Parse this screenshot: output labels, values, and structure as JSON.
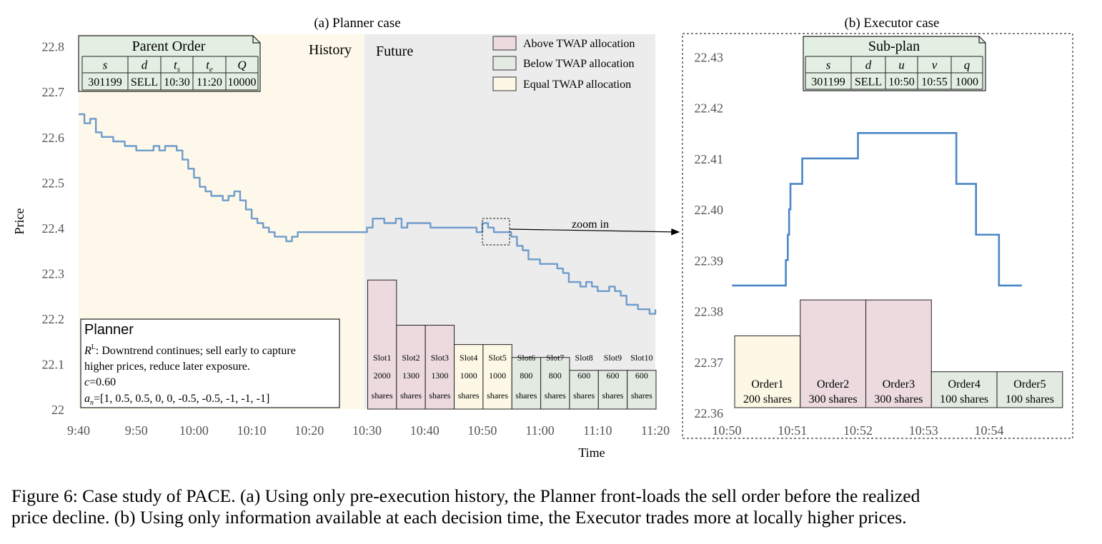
{
  "panel_a": {
    "title": "(a) Planner case",
    "region_history": "History",
    "region_future": "Future",
    "zoom_label": "zoom in",
    "legend": [
      {
        "label": "Above TWAP allocation",
        "color": "#ecdadf"
      },
      {
        "label": "Below TWAP allocation",
        "color": "#e3eae2"
      },
      {
        "label": "Equal TWAP allocation",
        "color": "#fdf8e5"
      }
    ],
    "parent_order": {
      "title": "Parent Order",
      "headers": [
        "s",
        "d",
        "t_s",
        "t_e",
        "Q"
      ],
      "values": [
        "301199",
        "SELL",
        "10:30",
        "11:20",
        "10000"
      ]
    },
    "planner": {
      "title": "Planner",
      "line1_symbol": "R",
      "line1_sup": "L",
      "line1_text": ": Downtrend continues; sell early to capture",
      "line2": "higher prices, reduce later exposure.",
      "line3_var": "c",
      "line3_val": "=0.60",
      "line4_var": "a",
      "line4_sub": "n",
      "line4_val": "=[1, 0.5, 0.5, 0, 0, -0.5, -0.5, -1, -1, -1]"
    }
  },
  "panel_b": {
    "title": "(b) Executor case",
    "sub_plan": {
      "title": "Sub-plan",
      "headers": [
        "s",
        "d",
        "u",
        "v",
        "q"
      ],
      "values": [
        "301199",
        "SELL",
        "10:50",
        "10:55",
        "1000"
      ]
    }
  },
  "chart_data": [
    {
      "type": "line",
      "title": "(a) Planner case",
      "xlabel": "Time",
      "ylabel": "Price",
      "x_ticks": [
        "9:40",
        "9:50",
        "10:00",
        "10:10",
        "10:20",
        "10:30",
        "10:40",
        "10:50",
        "11:00",
        "11:10",
        "11:20"
      ],
      "y_ticks": [
        "22",
        "22.1",
        "22.2",
        "22.3",
        "22.4",
        "22.5",
        "22.6",
        "22.7",
        "22.8"
      ],
      "xlim": [
        0,
        100
      ],
      "ylim": [
        22.0,
        22.82
      ],
      "x_unit": "minutes after 9:40",
      "series": [
        {
          "name": "Price",
          "color": "#6f9ccb",
          "x": [
            0,
            1,
            2,
            3,
            4,
            5,
            6,
            7,
            8,
            9,
            10,
            11,
            12,
            13,
            14,
            15,
            16,
            17,
            18,
            19,
            20,
            21,
            22,
            23,
            24,
            25,
            26,
            27,
            28,
            29,
            30,
            31,
            32,
            33,
            34,
            35,
            36,
            37,
            38,
            39,
            40,
            41,
            42,
            43,
            44,
            45,
            46,
            47,
            48,
            49,
            50,
            51,
            52,
            53,
            54,
            55,
            56,
            57,
            58,
            59,
            60,
            61,
            62,
            63,
            64,
            65,
            66,
            67,
            68,
            69,
            70,
            71,
            72,
            73,
            74,
            75,
            76,
            77,
            78,
            79,
            80,
            81,
            82,
            83,
            84,
            85,
            86,
            87,
            88,
            89,
            90,
            91,
            92,
            93,
            94,
            95,
            96,
            97,
            98,
            99,
            100
          ],
          "y": [
            22.65,
            22.63,
            22.64,
            22.61,
            22.6,
            22.6,
            22.59,
            22.59,
            22.58,
            22.58,
            22.57,
            22.57,
            22.57,
            22.58,
            22.57,
            22.58,
            22.58,
            22.57,
            22.55,
            22.53,
            22.51,
            22.49,
            22.48,
            22.47,
            22.47,
            22.46,
            22.47,
            22.48,
            22.46,
            22.44,
            22.42,
            22.41,
            22.4,
            22.39,
            22.38,
            22.38,
            22.37,
            22.38,
            22.39,
            22.39,
            22.39,
            22.39,
            22.39,
            22.39,
            22.39,
            22.39,
            22.39,
            22.39,
            22.39,
            22.39,
            22.4,
            22.42,
            22.42,
            22.41,
            22.41,
            22.42,
            22.4,
            22.41,
            22.41,
            22.41,
            22.41,
            22.4,
            22.4,
            22.4,
            22.4,
            22.4,
            22.4,
            22.4,
            22.4,
            22.39,
            22.41,
            22.4,
            22.39,
            22.39,
            22.39,
            22.38,
            22.36,
            22.35,
            22.33,
            22.33,
            22.32,
            22.32,
            22.32,
            22.31,
            22.3,
            22.28,
            22.28,
            22.27,
            22.28,
            22.27,
            22.26,
            22.26,
            22.27,
            22.26,
            22.25,
            22.23,
            22.23,
            22.22,
            22.22,
            22.21,
            22.22
          ]
        }
      ],
      "bars": {
        "categories": [
          "Slot1",
          "Slot2",
          "Slot3",
          "Slot4",
          "Slot5",
          "Slot6",
          "Slot7",
          "Slot8",
          "Slot9",
          "Slot10"
        ],
        "values": [
          2000,
          1300,
          1300,
          1000,
          1000,
          800,
          800,
          600,
          600,
          600
        ],
        "unit_label": "shares",
        "allocation": [
          "above",
          "above",
          "above",
          "equal",
          "equal",
          "below",
          "below",
          "below",
          "below",
          "below"
        ],
        "x_start": [
          50,
          55,
          60,
          65,
          70,
          75,
          80,
          85,
          90,
          95
        ],
        "x_end": [
          55,
          60,
          65,
          70,
          75,
          80,
          85,
          90,
          95,
          100
        ],
        "ymax": 2600
      }
    },
    {
      "type": "line",
      "title": "(b) Executor case",
      "x_ticks": [
        "10:50",
        "10:51",
        "10:52",
        "10:53",
        "10:54"
      ],
      "y_ticks": [
        "22.36",
        "22.37",
        "22.38",
        "22.39",
        "22.40",
        "22.41",
        "22.42",
        "22.43"
      ],
      "xlim": [
        0,
        5.1
      ],
      "ylim": [
        22.36,
        22.434
      ],
      "x_unit": "minutes after 10:50",
      "series": [
        {
          "name": "Price",
          "color": "#4a86c6",
          "x": [
            0.08,
            0.9,
            0.9,
            0.93,
            0.93,
            0.95,
            0.95,
            0.97,
            0.97,
            1.0,
            1.0,
            1.03,
            1.03,
            1.15,
            1.15,
            1.22,
            1.22,
            2.0,
            2.0,
            3.5,
            3.5,
            3.8,
            3.8,
            4.15,
            4.15,
            4.5
          ],
          "y": [
            22.385,
            22.385,
            22.39,
            22.39,
            22.395,
            22.395,
            22.4,
            22.4,
            22.405,
            22.405,
            22.405,
            22.405,
            22.405,
            22.405,
            22.41,
            22.41,
            22.41,
            22.41,
            22.415,
            22.415,
            22.405,
            22.405,
            22.395,
            22.395,
            22.385,
            22.385
          ]
        }
      ],
      "bars": {
        "categories": [
          "Order1",
          "Order2",
          "Order3",
          "Order4",
          "Order5"
        ],
        "values": [
          200,
          300,
          300,
          100,
          100
        ],
        "unit_label": "shares",
        "allocation": [
          "equal",
          "above",
          "above",
          "below",
          "below"
        ],
        "x_start": [
          0,
          1,
          2,
          3,
          4
        ],
        "x_end": [
          1,
          2,
          3,
          4,
          5
        ],
        "ymax": 330
      }
    }
  ],
  "caption": {
    "text": "Figure 6: Case study of PACE. (a) Using only pre-execution history, the Planner front-loads the sell order before the realized\nprice decline. (b) Using only information available at each decision time, the Executor trades more at locally higher prices."
  }
}
